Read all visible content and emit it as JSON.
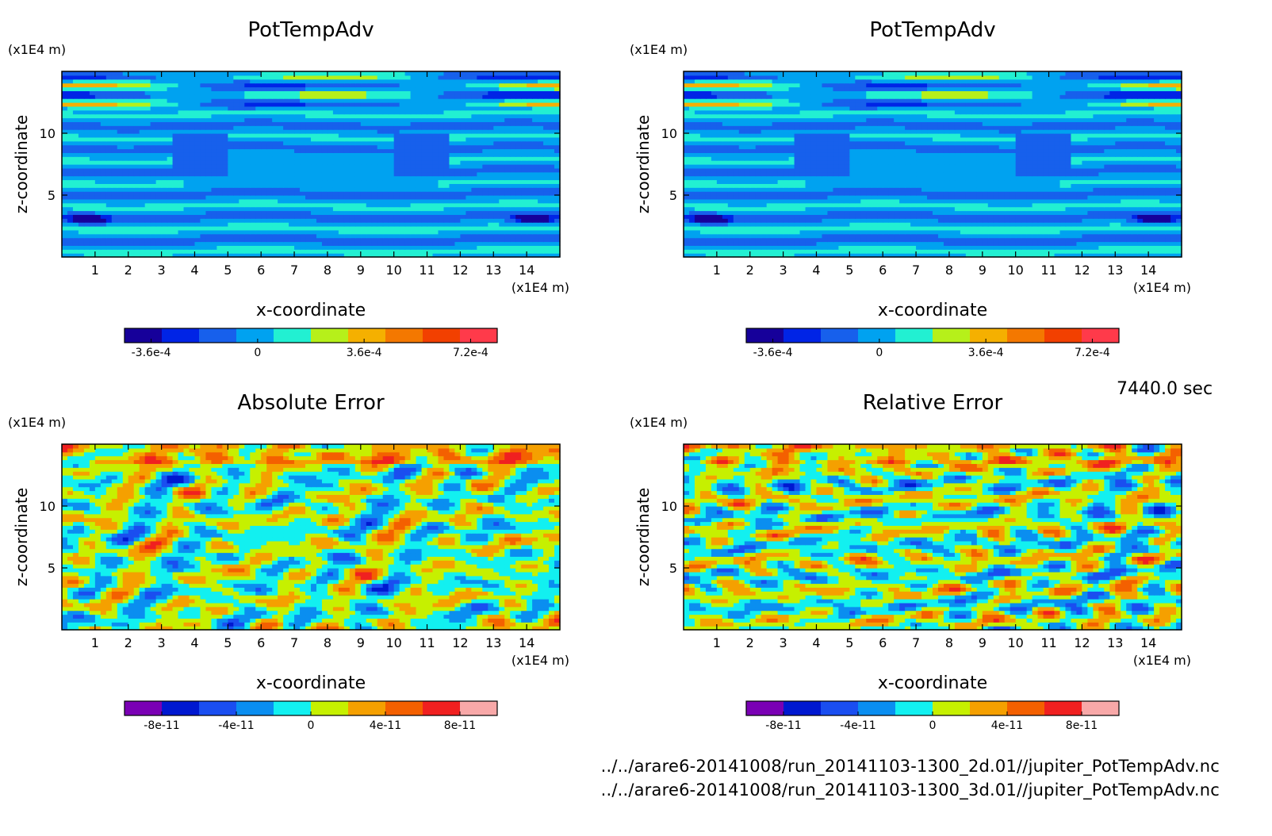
{
  "timestamp": "7440.0 sec",
  "footer": {
    "line1": "../../arare6-20141008/run_20141103-1300_2d.01//jupiter_PotTempAdv.nc",
    "line2": "../../arare6-20141008/run_20141103-1300_3d.01//jupiter_PotTempAdv.nc"
  },
  "chart_data": [
    {
      "type": "heatmap",
      "title": "PotTempAdv",
      "xlabel": "x-coordinate",
      "ylabel": "z-coordinate",
      "x_unit": "(x1E4 m)",
      "y_unit": "(x1E4 m)",
      "xlim": [
        0,
        15
      ],
      "ylim": [
        0,
        15
      ],
      "x_ticks": [
        "1",
        "2",
        "3",
        "4",
        "5",
        "6",
        "7",
        "8",
        "9",
        "10",
        "11",
        "12",
        "13",
        "14"
      ],
      "y_ticks": [
        "5",
        "10"
      ],
      "colorbar": {
        "colors": [
          "#16009a",
          "#0024e6",
          "#1760ec",
          "#00a2f0",
          "#22f0d2",
          "#b6f01a",
          "#f5b000",
          "#f47800",
          "#f24000",
          "#ff3a4a"
        ],
        "labels": [
          "-3.6e-4",
          "0",
          "3.6e-4",
          "7.2e-4"
        ],
        "label_values": [
          -0.00036,
          0,
          0.00036,
          0.00072
        ],
        "range": [
          -0.00045,
          0.00081
        ]
      },
      "pattern": "pottemp"
    },
    {
      "type": "heatmap",
      "title": "PotTempAdv",
      "xlabel": "x-coordinate",
      "ylabel": "z-coordinate",
      "x_unit": "(x1E4 m)",
      "y_unit": "(x1E4 m)",
      "xlim": [
        0,
        15
      ],
      "ylim": [
        0,
        15
      ],
      "x_ticks": [
        "1",
        "2",
        "3",
        "4",
        "5",
        "6",
        "7",
        "8",
        "9",
        "10",
        "11",
        "12",
        "13",
        "14"
      ],
      "y_ticks": [
        "5",
        "10"
      ],
      "colorbar": {
        "colors": [
          "#16009a",
          "#0024e6",
          "#1760ec",
          "#00a2f0",
          "#22f0d2",
          "#b6f01a",
          "#f5b000",
          "#f47800",
          "#f24000",
          "#ff3a4a"
        ],
        "labels": [
          "-3.6e-4",
          "0",
          "3.6e-4",
          "7.2e-4"
        ],
        "label_values": [
          -0.00036,
          0,
          0.00036,
          0.00072
        ],
        "range": [
          -0.00045,
          0.00081
        ]
      },
      "pattern": "pottemp"
    },
    {
      "type": "heatmap",
      "title": "Absolute Error",
      "xlabel": "x-coordinate",
      "ylabel": "z-coordinate",
      "x_unit": "(x1E4 m)",
      "y_unit": "(x1E4 m)",
      "xlim": [
        0,
        15
      ],
      "ylim": [
        0,
        15
      ],
      "x_ticks": [
        "1",
        "2",
        "3",
        "4",
        "5",
        "6",
        "7",
        "8",
        "9",
        "10",
        "11",
        "12",
        "13",
        "14"
      ],
      "y_ticks": [
        "5",
        "10"
      ],
      "colorbar": {
        "colors": [
          "#7a00b4",
          "#0018d0",
          "#1a4ef0",
          "#0a8ef0",
          "#12f0f0",
          "#c6f000",
          "#f5a000",
          "#f46000",
          "#f02020",
          "#f8a8a8"
        ],
        "labels": [
          "-8e-11",
          "-4e-11",
          "0",
          "4e-11",
          "8e-11"
        ],
        "label_values": [
          -8e-11,
          -4e-11,
          0,
          4e-11,
          8e-11
        ],
        "range": [
          -1e-10,
          1e-10
        ]
      },
      "pattern": "error_a"
    },
    {
      "type": "heatmap",
      "title": "Relative Error",
      "xlabel": "x-coordinate",
      "ylabel": "z-coordinate",
      "x_unit": "(x1E4 m)",
      "y_unit": "(x1E4 m)",
      "xlim": [
        0,
        15
      ],
      "ylim": [
        0,
        15
      ],
      "x_ticks": [
        "1",
        "2",
        "3",
        "4",
        "5",
        "6",
        "7",
        "8",
        "9",
        "10",
        "11",
        "12",
        "13",
        "14"
      ],
      "y_ticks": [
        "5",
        "10"
      ],
      "colorbar": {
        "colors": [
          "#7a00b4",
          "#0018d0",
          "#1a4ef0",
          "#0a8ef0",
          "#12f0f0",
          "#c6f000",
          "#f5a000",
          "#f46000",
          "#f02020",
          "#f8a8a8"
        ],
        "labels": [
          "-8e-11",
          "-4e-11",
          "0",
          "4e-11",
          "8e-11"
        ],
        "label_values": [
          -8e-11,
          -4e-11,
          0,
          4e-11,
          8e-11
        ],
        "range": [
          -1e-10,
          1e-10
        ]
      },
      "pattern": "error_b"
    }
  ]
}
